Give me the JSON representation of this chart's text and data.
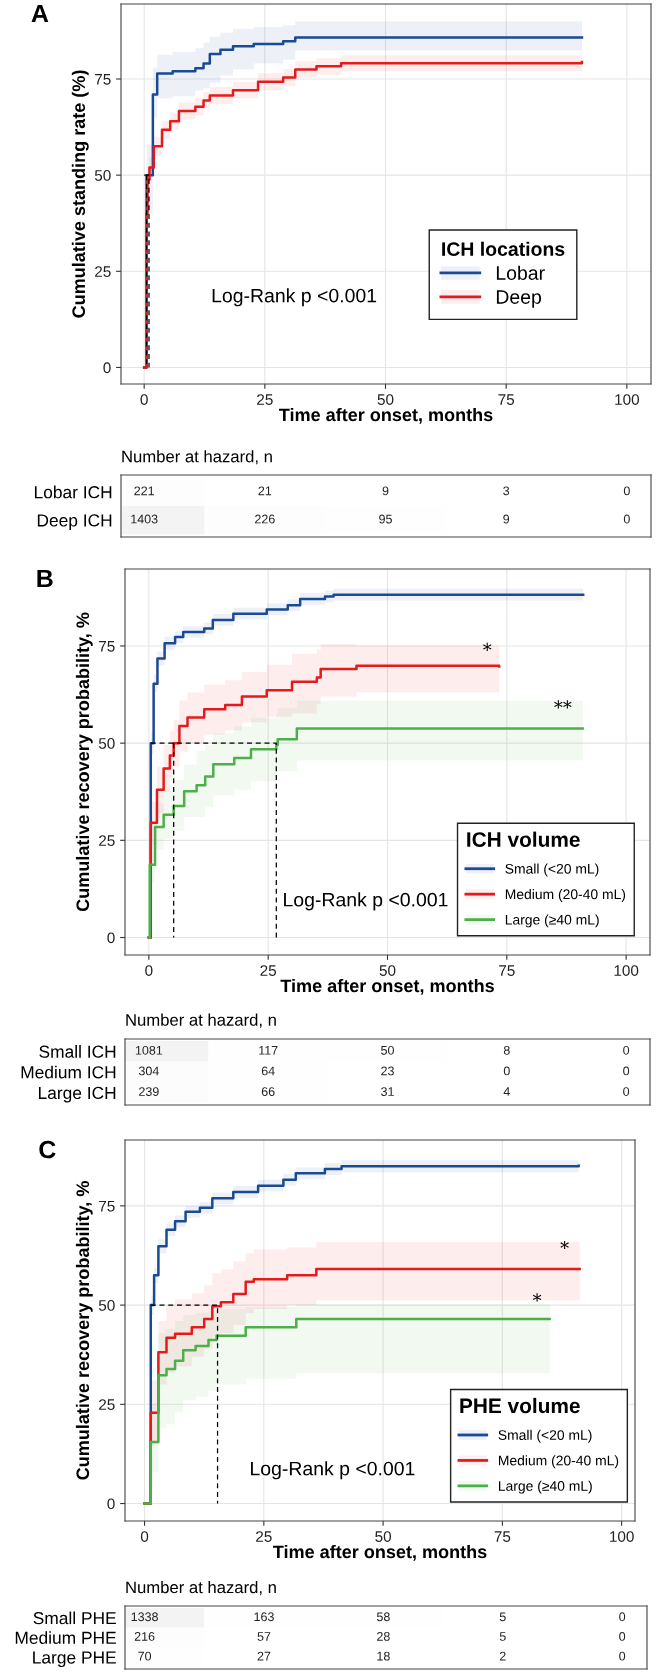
{
  "chart_data": [
    {
      "type": "step",
      "title": "A",
      "xlabel": "Time after onset, months",
      "ylabel": "Cumulative standing rate (%)",
      "legend_title": "ICH locations",
      "legend": "right",
      "grid": true,
      "xlim": [
        -4.8,
        105
      ],
      "xticks": [
        0,
        25,
        50,
        75,
        100
      ],
      "ylim": [
        -4.3,
        94.5
      ],
      "yticks": [
        0,
        25,
        50,
        75
      ],
      "annotations": [
        "Log-Rank p <0.001"
      ],
      "series": [
        {
          "name": "Lobar",
          "color": "#1a4a94",
          "x": [
            0,
            0.5,
            1.8,
            2.7,
            5.9,
            10.6,
            12.3,
            13.6,
            15.8,
            18.4,
            22.7,
            28.8,
            31.3,
            90.7
          ],
          "values": [
            0,
            50,
            71,
            76.4,
            77,
            77.8,
            79,
            81.5,
            82.6,
            83.5,
            84.1,
            84.8,
            85.8,
            85.8
          ],
          "lower": [
            0,
            40,
            65,
            70,
            70.5,
            72,
            72.6,
            74,
            76,
            77.5,
            79,
            80,
            82.4,
            81.3
          ],
          "upper": [
            0,
            58,
            78,
            81.3,
            82,
            83,
            84.5,
            86,
            87,
            88,
            88.5,
            89,
            90,
            90
          ]
        },
        {
          "name": "Deep",
          "color": "#e41a1c",
          "x": [
            0,
            0.5,
            0.7,
            1.1,
            2,
            3.7,
            5.4,
            7.2,
            10.6,
            12.3,
            13.6,
            18.4,
            23.6,
            28.8,
            31.3,
            35.7,
            40.8,
            90.7
          ],
          "values": [
            0,
            40,
            48.9,
            52,
            57.5,
            61.8,
            64,
            66.7,
            67.8,
            69.4,
            70.7,
            72.1,
            74.3,
            75.4,
            77.5,
            78.3,
            79.1,
            79.4
          ],
          "lower": [
            0,
            37,
            46.5,
            49.5,
            55,
            59.5,
            61.8,
            64.5,
            65.6,
            67.2,
            68.5,
            70,
            72.1,
            73.2,
            75.4,
            76.2,
            77,
            77.3
          ],
          "upper": [
            0,
            43,
            51.3,
            54.5,
            60,
            64.1,
            66.2,
            68.9,
            70,
            71.6,
            72.9,
            74.2,
            76.5,
            77.6,
            79.6,
            80.4,
            81.2,
            81.5
          ]
        },
        {
          "type": "line",
          "line_style": "dashed",
          "color": "#000000",
          "x": [
            0,
            1,
            1
          ],
          "values": [
            50,
            50,
            0
          ]
        },
        {
          "type": "line",
          "line_style": "dashed",
          "color": "#000000",
          "x": [
            0.5,
            0.5
          ],
          "values": [
            50,
            0
          ]
        }
      ]
    },
    {
      "type": "heatmap",
      "title": "Number at hazard, n",
      "categories": [
        null,
        null,
        null,
        null,
        null
      ],
      "y_categories": [
        "Lobar ICH",
        "Deep ICH"
      ],
      "cells": [
        [
          221,
          21,
          9,
          3,
          0
        ],
        [
          1403,
          226,
          95,
          9,
          0
        ]
      ],
      "cell_labels": [
        [
          "221",
          "21",
          "9",
          "3",
          "0"
        ],
        [
          "1403",
          "226",
          "95",
          "9",
          "0"
        ]
      ]
    },
    {
      "type": "step",
      "title": "B",
      "xlabel": "Time after onset, months",
      "ylabel": "Cumulative recovery probability, %",
      "legend_title": "ICH volume",
      "legend": "bottom right",
      "grid": true,
      "xlim": [
        -5,
        105
      ],
      "xticks": [
        0,
        25,
        50,
        75,
        100
      ],
      "ylim": [
        -4.5,
        94.8
      ],
      "yticks": [
        0,
        25,
        50,
        75
      ],
      "annotations": [
        "Log-Rank p <0.001",
        "*",
        "**"
      ],
      "series": [
        {
          "name": "Small (<20 mL)",
          "color": "#1a4a94",
          "x": [
            0,
            0.4,
            1,
            1.8,
            3.3,
            5.5,
            7.2,
            11.6,
            13.4,
            17.7,
            24.7,
            29.1,
            31.7,
            36.9,
            38.7,
            91
          ],
          "values": [
            0,
            50,
            65.3,
            71.8,
            75.7,
            77.3,
            78.6,
            79.5,
            81.7,
            83.3,
            84.4,
            85.5,
            87.1,
            87.7,
            88.2,
            88.2
          ],
          "lower": [
            0,
            47,
            63,
            70,
            74,
            75.8,
            77.1,
            78,
            80.2,
            81.8,
            82.9,
            84,
            85.6,
            86.2,
            86.7,
            86.7
          ],
          "upper": [
            0,
            53,
            67.6,
            73.6,
            77.4,
            78.8,
            80.1,
            81,
            83.2,
            84.8,
            85.9,
            87,
            88.6,
            89.2,
            89.7,
            89.7
          ]
        },
        {
          "name": "Medium (20-40 mL)",
          "color": "#e41a1c",
          "x": [
            0,
            0.4,
            1.7,
            3.1,
            4.4,
            5.2,
            6.4,
            8.1,
            11.6,
            16,
            19.5,
            24.7,
            30,
            35.2,
            36,
            43.5,
            73.4
          ],
          "values": [
            0,
            29.5,
            38,
            43.5,
            46.8,
            50,
            54.4,
            56.6,
            58.7,
            59.8,
            62,
            63.6,
            65.8,
            66.9,
            69.1,
            69.9,
            69.7
          ],
          "lower": [
            0,
            24,
            32,
            37.5,
            40.5,
            44,
            47.8,
            50,
            52.2,
            53.3,
            55.4,
            56.8,
            57.6,
            60,
            62,
            63.1,
            63.1
          ],
          "upper": [
            0,
            35,
            44,
            49.5,
            53,
            56,
            61,
            63,
            65,
            66.2,
            68.3,
            70.2,
            73,
            74,
            75.5,
            75.1,
            75.1
          ]
        },
        {
          "name": "Large (≥40 mL)",
          "color": "#4daf4a",
          "x": [
            0,
            0.2,
            1.3,
            3.1,
            5.2,
            7.4,
            10,
            11.8,
            13.5,
            17.9,
            21.4,
            26.7,
            27,
            31,
            90.9
          ],
          "values": [
            0,
            18.7,
            28.4,
            31.6,
            33.8,
            37.6,
            39.2,
            41.4,
            44.6,
            46.2,
            48.4,
            49.5,
            51,
            53.8,
            53.8
          ],
          "lower": [
            0,
            14,
            22.5,
            25.5,
            27.5,
            31,
            31,
            33.5,
            36.5,
            38,
            40.2,
            41.5,
            42.8,
            45.6,
            45.6
          ],
          "upper": [
            0,
            24,
            34.5,
            38,
            40.5,
            44.5,
            48,
            49.5,
            52.5,
            54.3,
            56.5,
            57.5,
            59,
            60.9,
            60.9
          ]
        },
        {
          "type": "line",
          "line_style": "dashed",
          "color": "#000000",
          "x": [
            0.4,
            26.7,
            26.7
          ],
          "values": [
            50,
            50,
            0
          ]
        },
        {
          "type": "line",
          "line_style": "dashed",
          "color": "#000000",
          "x": [
            5.2,
            5.2
          ],
          "values": [
            50,
            0
          ]
        }
      ]
    },
    {
      "type": "heatmap",
      "title": "Number at hazard, n",
      "categories": [
        null,
        null,
        null,
        null,
        null
      ],
      "y_categories": [
        "Small ICH",
        "Medium ICH",
        "Large ICH"
      ],
      "cells": [
        [
          1081,
          117,
          50,
          8,
          0
        ],
        [
          304,
          64,
          23,
          0,
          0
        ],
        [
          239,
          66,
          31,
          4,
          0
        ]
      ],
      "cell_labels": [
        [
          "1081",
          "117",
          "50",
          "8",
          "0"
        ],
        [
          "304",
          "64",
          "23",
          "0",
          "0"
        ],
        [
          "239",
          "66",
          "31",
          "4",
          "0"
        ]
      ]
    },
    {
      "type": "step",
      "title": "C",
      "xlabel": "Time after onset, months",
      "ylabel": "Cumulative recovery probability, %",
      "legend_title": "PHE volume",
      "legend": "bottom right",
      "grid": true,
      "xlim": [
        -4.1,
        102.8
      ],
      "xticks": [
        0,
        25,
        50,
        75,
        100
      ],
      "ylim": [
        -4.4,
        91.6
      ],
      "yticks": [
        0,
        25,
        50,
        75
      ],
      "annotations": [
        "Log-Rank p <0.001",
        "*",
        "*"
      ],
      "series": [
        {
          "name": "Small (<20 mL)",
          "color": "#1a4a94",
          "x": [
            0,
            1.3,
            2,
            2.9,
            4.6,
            6.4,
            8.6,
            11.6,
            14.2,
            18.6,
            23.8,
            29.1,
            31.7,
            37.8,
            41.3,
            91
          ],
          "values": [
            0,
            50,
            57.5,
            64.8,
            69,
            71.1,
            73.5,
            74.5,
            76.9,
            78.5,
            80.1,
            81.6,
            83.2,
            84.3,
            85,
            85.1
          ],
          "lower": [
            0,
            47.5,
            55.5,
            63,
            67.4,
            69.6,
            72,
            73,
            75.4,
            77,
            78.6,
            80.1,
            81.7,
            82.8,
            83.5,
            83.6
          ],
          "upper": [
            0,
            52.5,
            59.5,
            66.6,
            70.6,
            72.6,
            75,
            76,
            78.4,
            80,
            81.6,
            83.1,
            84.7,
            85.8,
            86.5,
            86.6
          ]
        },
        {
          "name": "Medium (20-40 mL)",
          "color": "#e41a1c",
          "x": [
            0,
            1.3,
            2.9,
            4.6,
            6.4,
            9.9,
            12.5,
            14.2,
            16,
            18.6,
            21.2,
            22.9,
            29.9,
            36,
            91.2
          ],
          "values": [
            0,
            22.9,
            38.1,
            41.8,
            42.8,
            44.4,
            46.5,
            49.7,
            50.7,
            52.8,
            55.9,
            56.5,
            57.5,
            59.1,
            59.1
          ],
          "lower": [
            0,
            15,
            30,
            33,
            34.5,
            37,
            39,
            42,
            43,
            45,
            48,
            49,
            50,
            51.2,
            51.2
          ],
          "upper": [
            0,
            31,
            46,
            50,
            51.5,
            53,
            55,
            58,
            59,
            61,
            63,
            64,
            64.5,
            65.9,
            65.9
          ]
        },
        {
          "name": "Large (≥40 mL)",
          "color": "#4daf4a",
          "x": [
            0,
            1.3,
            2.9,
            4.6,
            6.4,
            8.1,
            10.7,
            13.4,
            15.1,
            21.2,
            31.8,
            84.9
          ],
          "values": [
            0,
            15.5,
            32.3,
            33.9,
            36,
            38.6,
            39.7,
            41.2,
            42.3,
            44.4,
            46.5,
            46.5
          ],
          "lower": [
            0,
            8,
            19,
            20,
            23,
            26,
            27,
            28.5,
            30,
            31.5,
            32.8,
            32.8
          ],
          "upper": [
            0,
            25,
            43,
            44,
            46,
            47.5,
            48,
            48.5,
            49,
            49.5,
            50.2,
            50.2
          ]
        },
        {
          "type": "line",
          "line_style": "dashed",
          "color": "#000000",
          "x": [
            1.3,
            15.3,
            15.3
          ],
          "values": [
            50,
            50,
            0
          ]
        }
      ]
    },
    {
      "type": "heatmap",
      "title": "Number at hazard, n",
      "categories": [
        null,
        null,
        null,
        null,
        null
      ],
      "y_categories": [
        "Small PHE",
        "Medium PHE",
        "Large PHE"
      ],
      "cells": [
        [
          1338,
          163,
          58,
          5,
          0
        ],
        [
          216,
          57,
          28,
          5,
          0
        ],
        [
          70,
          27,
          18,
          2,
          0
        ]
      ],
      "cell_labels": [
        [
          "1338",
          "163",
          "58",
          "5",
          "0"
        ],
        [
          "216",
          "57",
          "28",
          "5",
          "0"
        ],
        [
          "70",
          "27",
          "18",
          "2",
          "0"
        ]
      ]
    }
  ]
}
